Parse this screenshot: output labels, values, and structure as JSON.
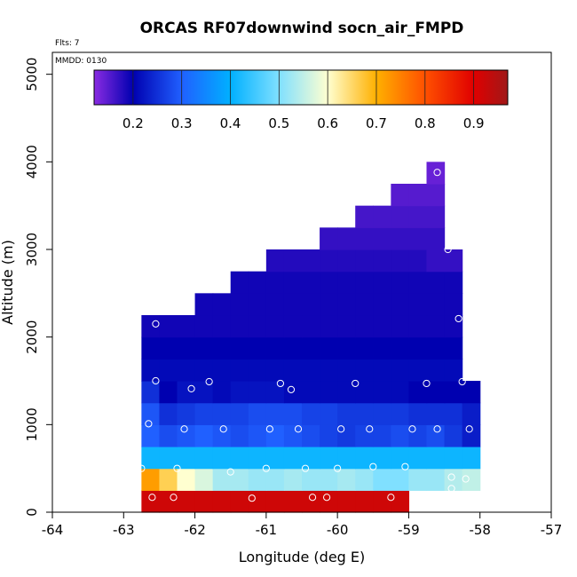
{
  "chart_data": {
    "type": "heatmap",
    "title": "ORCAS RF07downwind socn_air_FMPD",
    "xlabel": "Longitude (deg E)",
    "ylabel": "Altitude (m)",
    "xlim": [
      -64,
      -57
    ],
    "ylim": [
      0,
      5250
    ],
    "xticks": [
      -64,
      -63,
      -62,
      -61,
      -60,
      -59,
      -58,
      -57
    ],
    "xtick_labels": [
      "-64",
      "-63",
      "-62",
      "-61",
      "-60",
      "-59",
      "-58",
      "-57"
    ],
    "yticks": [
      0,
      1000,
      2000,
      3000,
      4000,
      5000
    ],
    "ytick_labels": [
      "0",
      "1000",
      "2000",
      "3000",
      "4000",
      "5000"
    ],
    "flights_note": "Flts: 7",
    "date_note": "MMDD: 0130",
    "colorbar": {
      "range": [
        0.12,
        0.97
      ],
      "ticks": [
        0.2,
        0.3,
        0.4,
        0.5,
        0.6,
        0.7,
        0.8,
        0.9
      ],
      "tick_labels": [
        "0.2",
        "0.3",
        "0.4",
        "0.5",
        "0.6",
        "0.7",
        "0.8",
        "0.9"
      ],
      "stops": [
        {
          "v": 0.12,
          "c": "#8a2be2"
        },
        {
          "v": 0.2,
          "c": "#0000b0"
        },
        {
          "v": 0.3,
          "c": "#2060ff"
        },
        {
          "v": 0.4,
          "c": "#00b0ff"
        },
        {
          "v": 0.5,
          "c": "#80e0ff"
        },
        {
          "v": 0.6,
          "c": "#ffffd0"
        },
        {
          "v": 0.7,
          "c": "#ffb000"
        },
        {
          "v": 0.8,
          "c": "#ff5000"
        },
        {
          "v": 0.9,
          "c": "#e00000"
        },
        {
          "v": 0.97,
          "c": "#a01818"
        }
      ]
    },
    "bin_width_deg": 0.25,
    "rows": [
      {
        "y0": 0,
        "y1": 250,
        "x0": -62.75,
        "x1": -59.0,
        "values": [
          0.92
        ]
      },
      {
        "y0": 250,
        "y1": 500,
        "x0": -62.75,
        "x1": -58.0,
        "values": [
          0.72,
          0.66,
          0.6,
          0.57,
          0.53,
          0.53,
          0.52,
          0.52,
          0.53,
          0.52,
          0.52,
          0.53,
          0.52,
          0.5,
          0.5,
          0.52,
          0.52,
          0.54,
          0.55
        ]
      },
      {
        "y0": 500,
        "y1": 750,
        "x0": -62.75,
        "x1": -58.0,
        "values": [
          0.41
        ]
      },
      {
        "y0": 750,
        "y1": 1000,
        "x0": -62.75,
        "x1": -58.0,
        "values": [
          0.3,
          0.28,
          0.29,
          0.3,
          0.29,
          0.28,
          0.29,
          0.3,
          0.29,
          0.28,
          0.27,
          0.26,
          0.27,
          0.27,
          0.28,
          0.27,
          0.28,
          0.26,
          0.23
        ]
      },
      {
        "y0": 1000,
        "y1": 1250,
        "x0": -62.75,
        "x1": -58.0,
        "values": [
          0.29,
          0.25,
          0.26,
          0.27,
          0.27,
          0.27,
          0.28,
          0.28,
          0.28,
          0.27,
          0.27,
          0.26,
          0.26,
          0.26,
          0.26,
          0.25,
          0.25,
          0.25,
          0.23
        ]
      },
      {
        "y0": 1250,
        "y1": 1500,
        "x0": -62.75,
        "x1": -58.0,
        "values": [
          0.25,
          0.2,
          0.22,
          0.22,
          0.21,
          0.22,
          0.22,
          0.22,
          0.21,
          0.21,
          0.21,
          0.21,
          0.21,
          0.21,
          0.21,
          0.2,
          0.2,
          0.2,
          0.2
        ]
      },
      {
        "y0": 1500,
        "y1": 1750,
        "x0": -62.75,
        "x1": -58.25,
        "values": [
          0.21
        ]
      },
      {
        "y0": 1750,
        "y1": 2000,
        "x0": -62.75,
        "x1": -58.25,
        "values": [
          0.2
        ]
      },
      {
        "y0": 2000,
        "y1": 2250,
        "x0": -62.75,
        "x1": -58.25,
        "values": [
          0.19
        ]
      },
      {
        "y0": 2250,
        "y1": 2500,
        "x0": -62.0,
        "x1": -58.25,
        "values": [
          0.19
        ]
      },
      {
        "y0": 2500,
        "y1": 2750,
        "x0": -61.5,
        "x1": -58.25,
        "values": [
          0.19
        ]
      },
      {
        "y0": 2750,
        "y1": 3000,
        "x0": -61.0,
        "x1": -58.25,
        "values": [
          0.18,
          0.18,
          0.18,
          0.18,
          0.18,
          0.18,
          0.18,
          0.18,
          0.18,
          0.17,
          0.17
        ]
      },
      {
        "y0": 3000,
        "y1": 3250,
        "x0": -60.25,
        "x1": -58.5,
        "values": [
          0.17
        ]
      },
      {
        "y0": 3250,
        "y1": 3500,
        "x0": -59.75,
        "x1": -58.5,
        "values": [
          0.16
        ]
      },
      {
        "y0": 3500,
        "y1": 3750,
        "x0": -59.25,
        "x1": -58.5,
        "values": [
          0.15
        ]
      },
      {
        "y0": 3750,
        "y1": 4000,
        "x0": -58.75,
        "x1": -58.5,
        "values": [
          0.14
        ]
      }
    ],
    "samples": [
      {
        "x": -62.6,
        "y": 170
      },
      {
        "x": -62.3,
        "y": 170
      },
      {
        "x": -61.2,
        "y": 160
      },
      {
        "x": -60.35,
        "y": 170
      },
      {
        "x": -60.15,
        "y": 170
      },
      {
        "x": -59.25,
        "y": 170
      },
      {
        "x": -62.75,
        "y": 500
      },
      {
        "x": -62.25,
        "y": 500
      },
      {
        "x": -61.5,
        "y": 460
      },
      {
        "x": -61.0,
        "y": 500
      },
      {
        "x": -60.45,
        "y": 500
      },
      {
        "x": -60.0,
        "y": 500
      },
      {
        "x": -59.5,
        "y": 520
      },
      {
        "x": -59.05,
        "y": 520
      },
      {
        "x": -58.4,
        "y": 400
      },
      {
        "x": -58.4,
        "y": 270
      },
      {
        "x": -58.2,
        "y": 380
      },
      {
        "x": -62.65,
        "y": 1010
      },
      {
        "x": -62.15,
        "y": 950
      },
      {
        "x": -61.6,
        "y": 950
      },
      {
        "x": -60.95,
        "y": 950
      },
      {
        "x": -60.55,
        "y": 950
      },
      {
        "x": -59.95,
        "y": 950
      },
      {
        "x": -59.55,
        "y": 950
      },
      {
        "x": -58.95,
        "y": 950
      },
      {
        "x": -58.6,
        "y": 950
      },
      {
        "x": -58.15,
        "y": 950
      },
      {
        "x": -62.55,
        "y": 1500
      },
      {
        "x": -62.05,
        "y": 1410
      },
      {
        "x": -61.8,
        "y": 1490
      },
      {
        "x": -60.8,
        "y": 1470
      },
      {
        "x": -60.65,
        "y": 1400
      },
      {
        "x": -59.75,
        "y": 1470
      },
      {
        "x": -58.75,
        "y": 1470
      },
      {
        "x": -58.25,
        "y": 1490
      },
      {
        "x": -62.55,
        "y": 2150
      },
      {
        "x": -58.3,
        "y": 2210
      },
      {
        "x": -58.45,
        "y": 3000
      },
      {
        "x": -58.6,
        "y": 3880
      }
    ]
  }
}
